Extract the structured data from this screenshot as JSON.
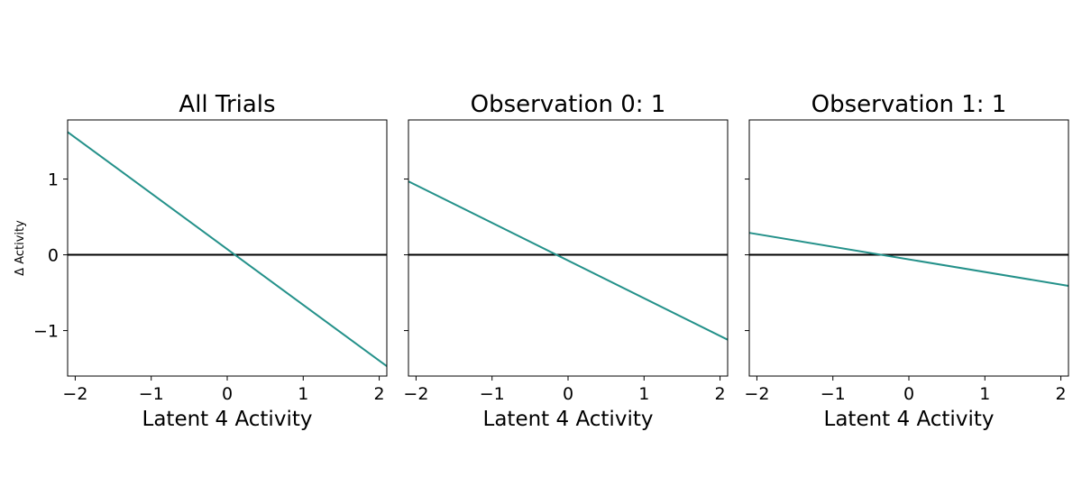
{
  "figure": {
    "ylabel": "Δ Activity"
  },
  "chart_data": [
    {
      "type": "line",
      "title": "All Trials",
      "xlabel": "Latent 4 Activity",
      "ylabel": "Δ Activity",
      "xlim": [
        -2.1,
        2.1
      ],
      "ylim": [
        -1.6,
        1.78
      ],
      "xticks": [
        -2,
        -1,
        0,
        1,
        2
      ],
      "xtick_labels": [
        "−2",
        "−1",
        "0",
        "1",
        "2"
      ],
      "yticks": [
        -1,
        0,
        1
      ],
      "ytick_labels": [
        "−1",
        "0",
        "1"
      ],
      "show_ytick_labels": true,
      "grid": false,
      "reference_line": {
        "y": 0,
        "color": "#000000"
      },
      "series": [
        {
          "color": "#24918a",
          "x": [
            -2.1,
            2.1
          ],
          "y": [
            1.62,
            -1.47
          ]
        }
      ]
    },
    {
      "type": "line",
      "title": "Observation 0: 1",
      "xlabel": "Latent 4 Activity",
      "xlim": [
        -2.1,
        2.1
      ],
      "ylim": [
        -1.6,
        1.78
      ],
      "xticks": [
        -2,
        -1,
        0,
        1,
        2
      ],
      "xtick_labels": [
        "−2",
        "−1",
        "0",
        "1",
        "2"
      ],
      "yticks": [
        -1,
        0,
        1
      ],
      "ytick_labels": [],
      "show_ytick_labels": false,
      "grid": false,
      "reference_line": {
        "y": 0,
        "color": "#000000"
      },
      "series": [
        {
          "color": "#24918a",
          "x": [
            -2.1,
            2.1
          ],
          "y": [
            0.97,
            -1.12
          ]
        }
      ]
    },
    {
      "type": "line",
      "title": "Observation 1: 1",
      "xlabel": "Latent 4 Activity",
      "xlim": [
        -2.1,
        2.1
      ],
      "ylim": [
        -1.6,
        1.78
      ],
      "xticks": [
        -2,
        -1,
        0,
        1,
        2
      ],
      "xtick_labels": [
        "−2",
        "−1",
        "0",
        "1",
        "2"
      ],
      "yticks": [
        -1,
        0,
        1
      ],
      "ytick_labels": [],
      "show_ytick_labels": false,
      "grid": false,
      "reference_line": {
        "y": 0,
        "color": "#000000"
      },
      "series": [
        {
          "color": "#24918a",
          "x": [
            -2.1,
            2.1
          ],
          "y": [
            0.29,
            -0.41
          ]
        }
      ]
    }
  ]
}
